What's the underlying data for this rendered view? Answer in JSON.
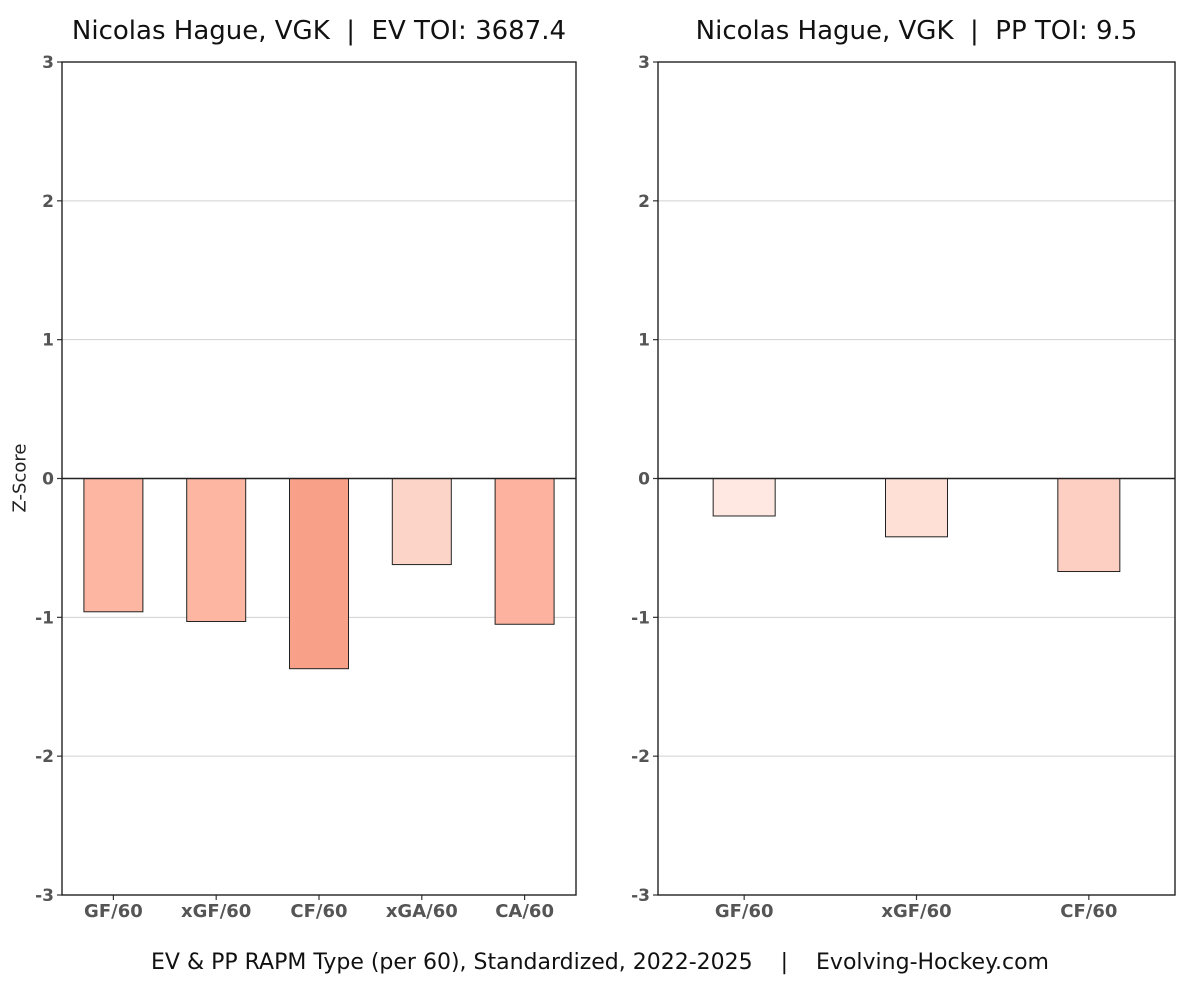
{
  "caption": "EV & PP RAPM Type (per 60), Standardized, 2022-2025    |    Evolving-Hockey.com",
  "ylabel": "Z-Score",
  "chart_data": [
    {
      "type": "bar",
      "title": "Nicolas Hague, VGK  |  EV TOI: 3687.4",
      "ylabel": "Z-Score",
      "ylim": [
        -3,
        3
      ],
      "yticks": [
        "-3",
        "-2",
        "-1",
        "0",
        "1",
        "2",
        "3"
      ],
      "grid": "horizontal",
      "categories": [
        "GF/60",
        "xGF/60",
        "CF/60",
        "xGA/60",
        "CA/60"
      ],
      "values": [
        -0.96,
        -1.03,
        -1.37,
        -0.62,
        -1.05
      ],
      "colors": [
        "#fcb6a2",
        "#fcb6a2",
        "#f9a088",
        "#fdd5c8",
        "#fcb29e"
      ]
    },
    {
      "type": "bar",
      "title": "Nicolas Hague, VGK  |  PP TOI: 9.5",
      "ylim": [
        -3,
        3
      ],
      "yticks": [
        "-3",
        "-2",
        "-1",
        "0",
        "1",
        "2",
        "3"
      ],
      "grid": "horizontal",
      "categories": [
        "GF/60",
        "xGF/60",
        "CF/60"
      ],
      "values": [
        -0.27,
        -0.42,
        -0.67
      ],
      "colors": [
        "#fee8e1",
        "#fee0d6",
        "#fdcfc2"
      ]
    }
  ]
}
